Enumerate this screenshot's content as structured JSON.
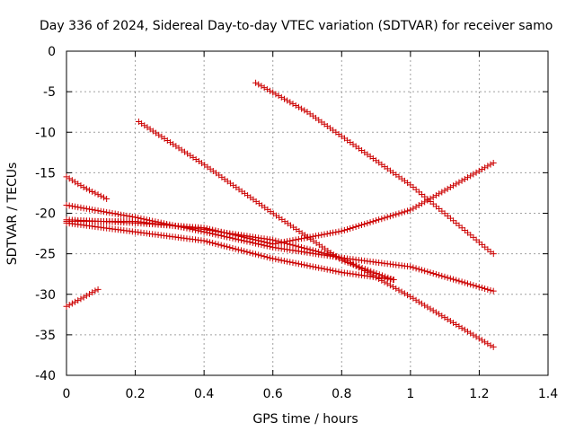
{
  "chart_data": {
    "type": "scatter",
    "title": "Day 336 of 2024, Sidereal Day-to-day VTEC variation (SDTVAR) for receiver samo",
    "xlabel": "GPS time / hours",
    "ylabel": "SDTVAR / TECUs",
    "xlim": [
      0,
      1.4
    ],
    "ylim": [
      -40,
      0
    ],
    "xticks": [
      0,
      0.2,
      0.4,
      0.6,
      0.8,
      1,
      1.2,
      1.4
    ],
    "yticks": [
      0,
      -5,
      -10,
      -15,
      -20,
      -25,
      -30,
      -35,
      -40
    ],
    "xtick_labels": [
      "0",
      "0.2",
      "0.4",
      "0.6",
      "0.8",
      "1",
      "1.2",
      "1.4"
    ],
    "ytick_labels": [
      "0",
      "-5",
      "-10",
      "-15",
      "-20",
      "-25",
      "-30",
      "-35",
      "-40"
    ],
    "grid": true,
    "marker": "plus",
    "marker_color": "#cc0000",
    "x_step": 0.00833,
    "series": [
      {
        "name": "trace-1",
        "x_start": 0.0,
        "x_end": 0.12,
        "curve": [
          [
            0.0,
            -15.5
          ],
          [
            0.05,
            -16.8
          ],
          [
            0.12,
            -18.3
          ]
        ]
      },
      {
        "name": "trace-2",
        "x_start": 0.0,
        "x_end": 0.09,
        "curve": [
          [
            0.0,
            -31.5
          ],
          [
            0.045,
            -30.5
          ],
          [
            0.09,
            -29.4
          ]
        ]
      },
      {
        "name": "trace-3",
        "x_start": 0.0,
        "x_end": 1.24,
        "curve": [
          [
            0.0,
            -19.0
          ],
          [
            0.2,
            -20.5
          ],
          [
            0.4,
            -22.3
          ],
          [
            0.6,
            -24.2
          ],
          [
            0.8,
            -25.5
          ],
          [
            1.0,
            -26.6
          ],
          [
            1.24,
            -29.6
          ]
        ]
      },
      {
        "name": "trace-4",
        "x_start": 0.0,
        "x_end": 1.24,
        "curve": [
          [
            0.0,
            -20.8
          ],
          [
            0.2,
            -21.2
          ],
          [
            0.4,
            -21.8
          ],
          [
            0.6,
            -23.8
          ],
          [
            0.8,
            -22.2
          ],
          [
            1.0,
            -19.6
          ],
          [
            1.24,
            -13.8
          ]
        ]
      },
      {
        "name": "trace-5",
        "x_start": 0.0,
        "x_end": 0.95,
        "curve": [
          [
            0.0,
            -21.2
          ],
          [
            0.2,
            -22.3
          ],
          [
            0.4,
            -23.4
          ],
          [
            0.6,
            -25.6
          ],
          [
            0.8,
            -27.3
          ],
          [
            0.95,
            -28.2
          ]
        ]
      },
      {
        "name": "trace-6",
        "x_start": 0.0,
        "x_end": 1.24,
        "curve": [
          [
            0.0,
            -21.0
          ],
          [
            0.2,
            -21.0
          ],
          [
            0.4,
            -22.0
          ],
          [
            0.6,
            -23.3
          ],
          [
            0.8,
            -25.5
          ],
          [
            1.0,
            -30.3
          ],
          [
            1.24,
            -36.5
          ]
        ]
      },
      {
        "name": "trace-7",
        "x_start": 0.21,
        "x_end": 0.95,
        "curve": [
          [
            0.21,
            -8.7
          ],
          [
            0.4,
            -14.0
          ],
          [
            0.6,
            -20.0
          ],
          [
            0.8,
            -25.8
          ],
          [
            0.95,
            -28.2
          ]
        ]
      },
      {
        "name": "trace-8",
        "x_start": 0.55,
        "x_end": 1.24,
        "curve": [
          [
            0.55,
            -3.9
          ],
          [
            0.7,
            -7.5
          ],
          [
            0.8,
            -10.5
          ],
          [
            1.0,
            -16.5
          ],
          [
            1.24,
            -25.0
          ]
        ]
      }
    ]
  }
}
